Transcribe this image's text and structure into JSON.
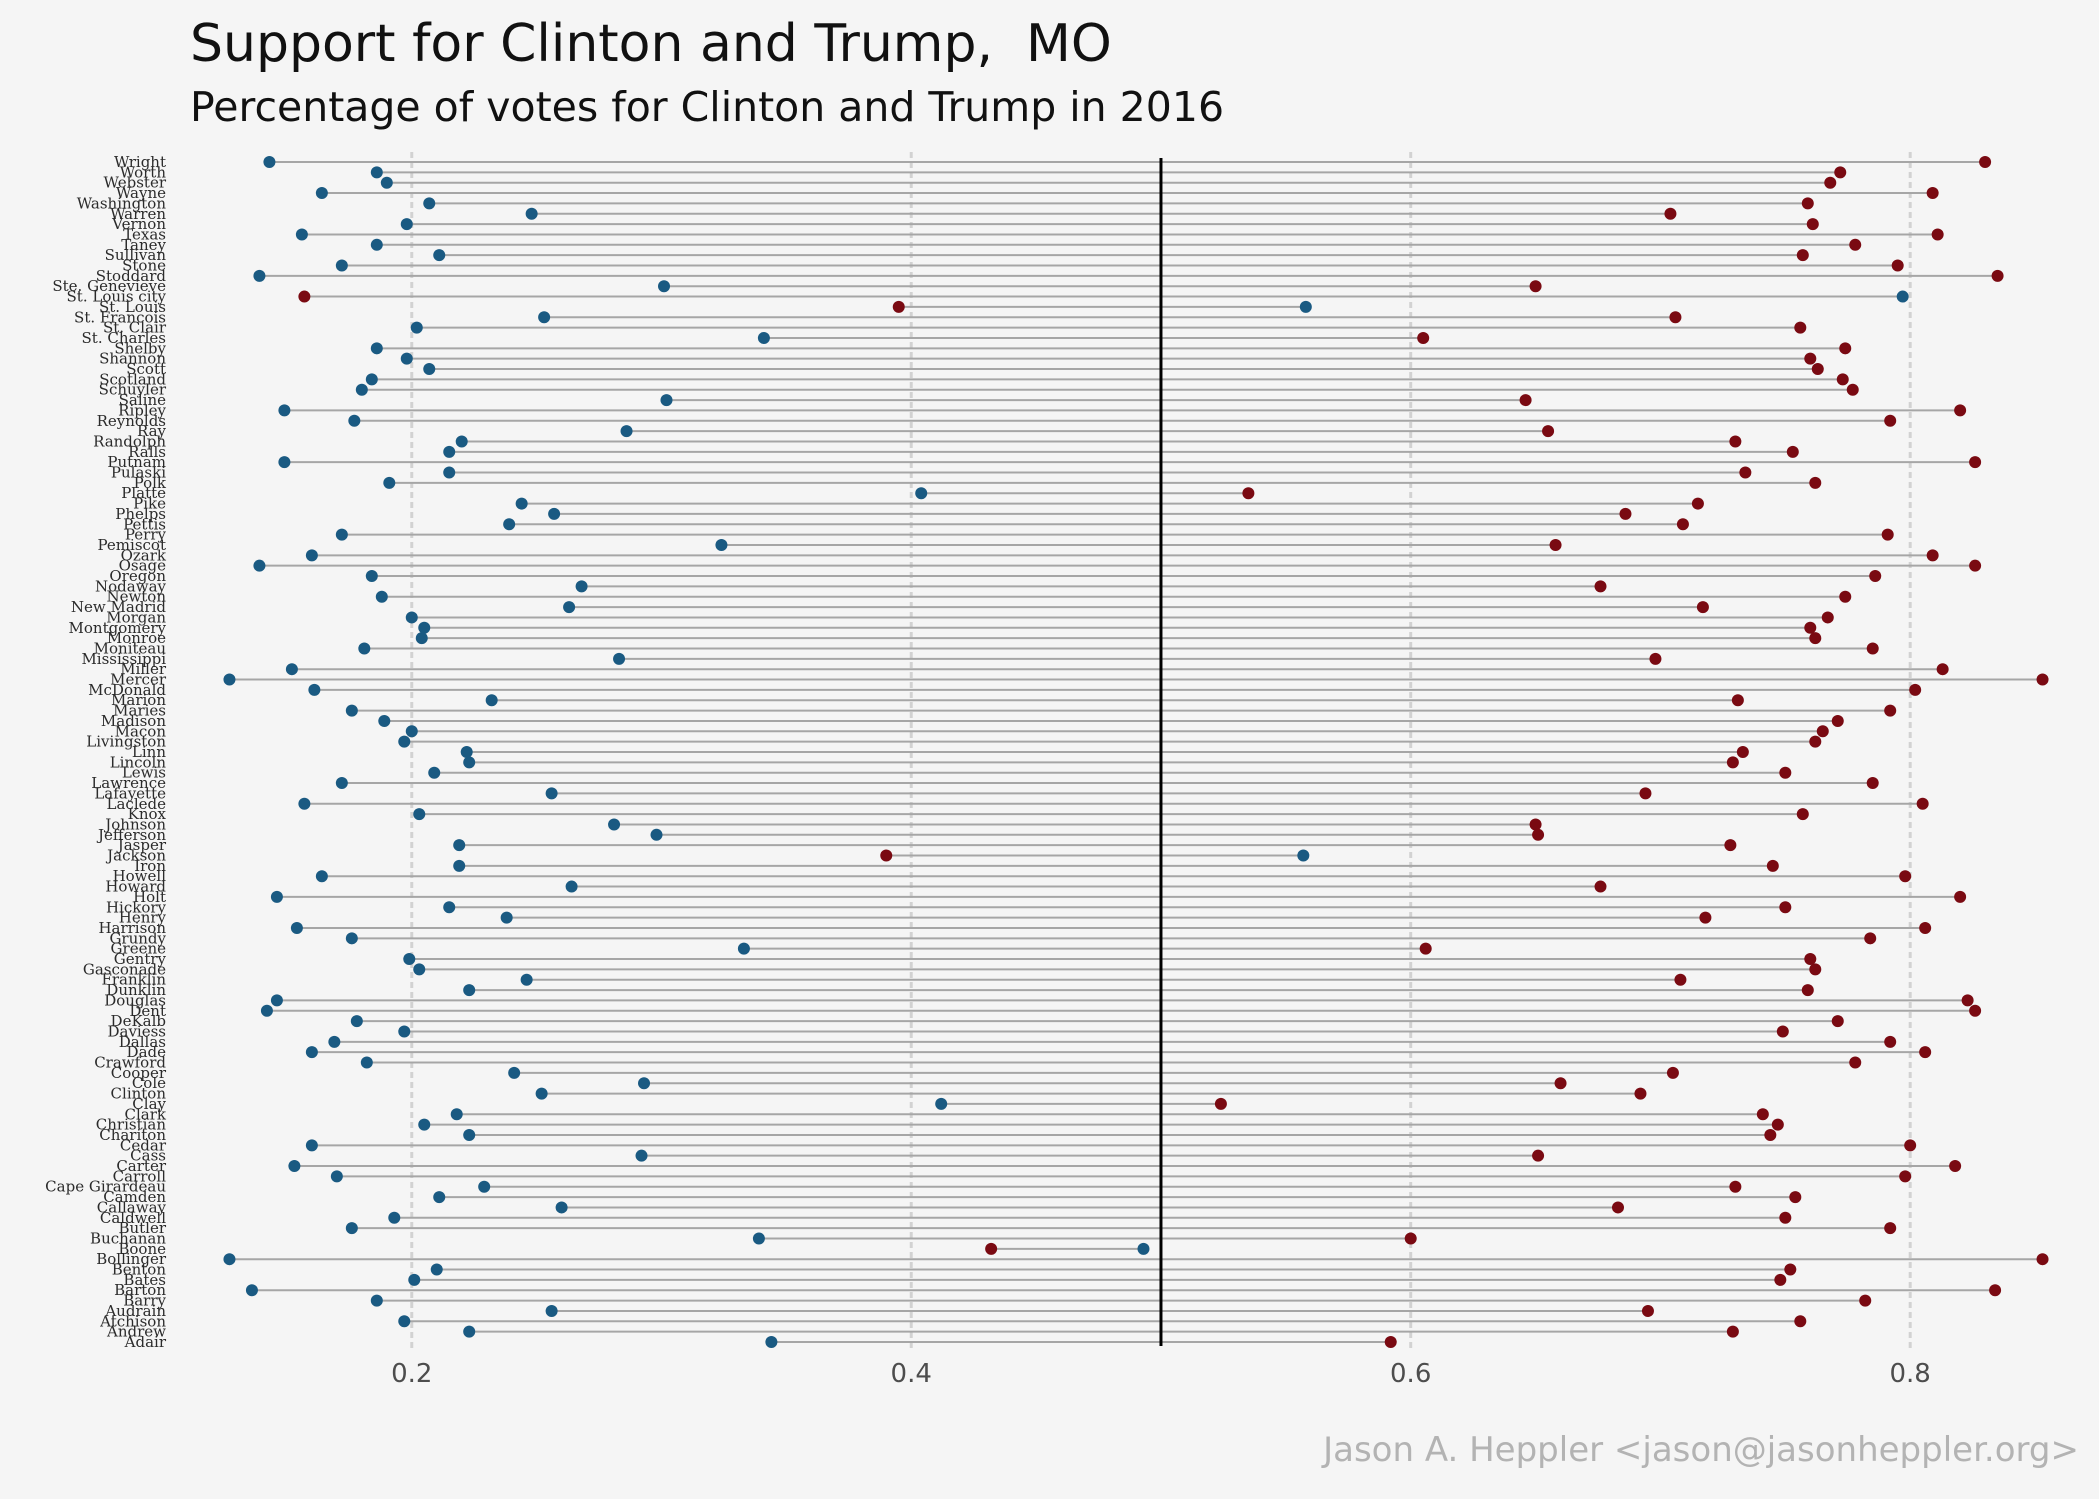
{
  "title": "Support for Clinton and Trump,  MO",
  "subtitle": "Percentage of votes for Clinton and Trump in 2016",
  "caption": "Jason A. Heppler <jason@jasonheppler.org>",
  "colors": {
    "clinton": "#1a5a82",
    "trump": "#7a0a12",
    "segment": "#a6a6a6",
    "midline": "#000000",
    "grid": "#d2d2d2"
  },
  "chart_data": {
    "type": "dumbbell",
    "x_ticks": [
      0.2,
      0.4,
      0.6,
      0.8
    ],
    "xlim": [
      0.112,
      0.868
    ],
    "reference_line": 0.5,
    "series": [
      {
        "name": "Clinton",
        "color": "#1a5a82"
      },
      {
        "name": "Trump",
        "color": "#7a0a12"
      }
    ],
    "counties": [
      {
        "name": "Wright",
        "clinton": 0.143,
        "trump": 0.83
      },
      {
        "name": "Worth",
        "clinton": 0.186,
        "trump": 0.772
      },
      {
        "name": "Webster",
        "clinton": 0.19,
        "trump": 0.768
      },
      {
        "name": "Wayne",
        "clinton": 0.164,
        "trump": 0.809
      },
      {
        "name": "Washington",
        "clinton": 0.207,
        "trump": 0.759
      },
      {
        "name": "Warren",
        "clinton": 0.248,
        "trump": 0.704
      },
      {
        "name": "Vernon",
        "clinton": 0.198,
        "trump": 0.761
      },
      {
        "name": "Texas",
        "clinton": 0.156,
        "trump": 0.811
      },
      {
        "name": "Taney",
        "clinton": 0.186,
        "trump": 0.778
      },
      {
        "name": "Sullivan",
        "clinton": 0.211,
        "trump": 0.757
      },
      {
        "name": "Stone",
        "clinton": 0.172,
        "trump": 0.795
      },
      {
        "name": "Stoddard",
        "clinton": 0.139,
        "trump": 0.835
      },
      {
        "name": "Ste. Genevieve",
        "clinton": 0.301,
        "trump": 0.65
      },
      {
        "name": "St. Louis city",
        "clinton": 0.797,
        "trump": 0.157
      },
      {
        "name": "St. Louis",
        "clinton": 0.558,
        "trump": 0.395
      },
      {
        "name": "St. Francois",
        "clinton": 0.253,
        "trump": 0.706
      },
      {
        "name": "St. Clair",
        "clinton": 0.202,
        "trump": 0.756
      },
      {
        "name": "St. Charles",
        "clinton": 0.341,
        "trump": 0.605
      },
      {
        "name": "Shelby",
        "clinton": 0.186,
        "trump": 0.774
      },
      {
        "name": "Shannon",
        "clinton": 0.198,
        "trump": 0.76
      },
      {
        "name": "Scott",
        "clinton": 0.207,
        "trump": 0.763
      },
      {
        "name": "Scotland",
        "clinton": 0.184,
        "trump": 0.773
      },
      {
        "name": "Schuyler",
        "clinton": 0.18,
        "trump": 0.777
      },
      {
        "name": "Saline",
        "clinton": 0.302,
        "trump": 0.646
      },
      {
        "name": "Ripley",
        "clinton": 0.149,
        "trump": 0.82
      },
      {
        "name": "Reynolds",
        "clinton": 0.177,
        "trump": 0.792
      },
      {
        "name": "Ray",
        "clinton": 0.286,
        "trump": 0.655
      },
      {
        "name": "Randolph",
        "clinton": 0.22,
        "trump": 0.73
      },
      {
        "name": "Ralls",
        "clinton": 0.215,
        "trump": 0.753
      },
      {
        "name": "Putnam",
        "clinton": 0.149,
        "trump": 0.826
      },
      {
        "name": "Pulaski",
        "clinton": 0.215,
        "trump": 0.734
      },
      {
        "name": "Polk",
        "clinton": 0.191,
        "trump": 0.762
      },
      {
        "name": "Platte",
        "clinton": 0.404,
        "trump": 0.535
      },
      {
        "name": "Pike",
        "clinton": 0.244,
        "trump": 0.715
      },
      {
        "name": "Phelps",
        "clinton": 0.257,
        "trump": 0.686
      },
      {
        "name": "Pettis",
        "clinton": 0.239,
        "trump": 0.709
      },
      {
        "name": "Perry",
        "clinton": 0.172,
        "trump": 0.791
      },
      {
        "name": "Pemiscot",
        "clinton": 0.324,
        "trump": 0.658
      },
      {
        "name": "Ozark",
        "clinton": 0.16,
        "trump": 0.809
      },
      {
        "name": "Osage",
        "clinton": 0.139,
        "trump": 0.826
      },
      {
        "name": "Oregon",
        "clinton": 0.184,
        "trump": 0.786
      },
      {
        "name": "Nodaway",
        "clinton": 0.268,
        "trump": 0.676
      },
      {
        "name": "Newton",
        "clinton": 0.188,
        "trump": 0.774
      },
      {
        "name": "New Madrid",
        "clinton": 0.263,
        "trump": 0.717
      },
      {
        "name": "Morgan",
        "clinton": 0.2,
        "trump": 0.767
      },
      {
        "name": "Montgomery",
        "clinton": 0.205,
        "trump": 0.76
      },
      {
        "name": "Monroe",
        "clinton": 0.204,
        "trump": 0.762
      },
      {
        "name": "Moniteau",
        "clinton": 0.181,
        "trump": 0.785
      },
      {
        "name": "Mississippi",
        "clinton": 0.283,
        "trump": 0.698
      },
      {
        "name": "Miller",
        "clinton": 0.152,
        "trump": 0.813
      },
      {
        "name": "Mercer",
        "clinton": 0.127,
        "trump": 0.853
      },
      {
        "name": "McDonald",
        "clinton": 0.161,
        "trump": 0.802
      },
      {
        "name": "Marion",
        "clinton": 0.232,
        "trump": 0.731
      },
      {
        "name": "Maries",
        "clinton": 0.176,
        "trump": 0.792
      },
      {
        "name": "Madison",
        "clinton": 0.189,
        "trump": 0.771
      },
      {
        "name": "Macon",
        "clinton": 0.2,
        "trump": 0.765
      },
      {
        "name": "Livingston",
        "clinton": 0.197,
        "trump": 0.762
      },
      {
        "name": "Linn",
        "clinton": 0.222,
        "trump": 0.733
      },
      {
        "name": "Lincoln",
        "clinton": 0.223,
        "trump": 0.729
      },
      {
        "name": "Lewis",
        "clinton": 0.209,
        "trump": 0.75
      },
      {
        "name": "Lawrence",
        "clinton": 0.172,
        "trump": 0.785
      },
      {
        "name": "Lafayette",
        "clinton": 0.256,
        "trump": 0.694
      },
      {
        "name": "Laclede",
        "clinton": 0.157,
        "trump": 0.805
      },
      {
        "name": "Knox",
        "clinton": 0.203,
        "trump": 0.757
      },
      {
        "name": "Johnson",
        "clinton": 0.281,
        "trump": 0.65
      },
      {
        "name": "Jefferson",
        "clinton": 0.298,
        "trump": 0.651
      },
      {
        "name": "Jasper",
        "clinton": 0.219,
        "trump": 0.728
      },
      {
        "name": "Jackson",
        "clinton": 0.557,
        "trump": 0.39
      },
      {
        "name": "Iron",
        "clinton": 0.219,
        "trump": 0.745
      },
      {
        "name": "Howell",
        "clinton": 0.164,
        "trump": 0.798
      },
      {
        "name": "Howard",
        "clinton": 0.264,
        "trump": 0.676
      },
      {
        "name": "Holt",
        "clinton": 0.146,
        "trump": 0.82
      },
      {
        "name": "Hickory",
        "clinton": 0.215,
        "trump": 0.75
      },
      {
        "name": "Henry",
        "clinton": 0.238,
        "trump": 0.718
      },
      {
        "name": "Harrison",
        "clinton": 0.154,
        "trump": 0.806
      },
      {
        "name": "Grundy",
        "clinton": 0.176,
        "trump": 0.784
      },
      {
        "name": "Greene",
        "clinton": 0.333,
        "trump": 0.606
      },
      {
        "name": "Gentry",
        "clinton": 0.199,
        "trump": 0.76
      },
      {
        "name": "Gasconade",
        "clinton": 0.203,
        "trump": 0.762
      },
      {
        "name": "Franklin",
        "clinton": 0.246,
        "trump": 0.708
      },
      {
        "name": "Dunklin",
        "clinton": 0.223,
        "trump": 0.759
      },
      {
        "name": "Douglas",
        "clinton": 0.146,
        "trump": 0.823
      },
      {
        "name": "Dent",
        "clinton": 0.142,
        "trump": 0.826
      },
      {
        "name": "DeKalb",
        "clinton": 0.178,
        "trump": 0.771
      },
      {
        "name": "Daviess",
        "clinton": 0.197,
        "trump": 0.749
      },
      {
        "name": "Dallas",
        "clinton": 0.169,
        "trump": 0.792
      },
      {
        "name": "Dade",
        "clinton": 0.16,
        "trump": 0.806
      },
      {
        "name": "Crawford",
        "clinton": 0.182,
        "trump": 0.778
      },
      {
        "name": "Cooper",
        "clinton": 0.241,
        "trump": 0.705
      },
      {
        "name": "Cole",
        "clinton": 0.293,
        "trump": 0.66
      },
      {
        "name": "Clinton",
        "clinton": 0.252,
        "trump": 0.692
      },
      {
        "name": "Clay",
        "clinton": 0.412,
        "trump": 0.524
      },
      {
        "name": "Clark",
        "clinton": 0.218,
        "trump": 0.741
      },
      {
        "name": "Christian",
        "clinton": 0.205,
        "trump": 0.747
      },
      {
        "name": "Chariton",
        "clinton": 0.223,
        "trump": 0.744
      },
      {
        "name": "Cedar",
        "clinton": 0.16,
        "trump": 0.8
      },
      {
        "name": "Cass",
        "clinton": 0.292,
        "trump": 0.651
      },
      {
        "name": "Carter",
        "clinton": 0.153,
        "trump": 0.818
      },
      {
        "name": "Carroll",
        "clinton": 0.17,
        "trump": 0.798
      },
      {
        "name": "Cape Girardeau",
        "clinton": 0.229,
        "trump": 0.73
      },
      {
        "name": "Camden",
        "clinton": 0.211,
        "trump": 0.754
      },
      {
        "name": "Callaway",
        "clinton": 0.26,
        "trump": 0.683
      },
      {
        "name": "Caldwell",
        "clinton": 0.193,
        "trump": 0.75
      },
      {
        "name": "Butler",
        "clinton": 0.176,
        "trump": 0.792
      },
      {
        "name": "Buchanan",
        "clinton": 0.339,
        "trump": 0.6
      },
      {
        "name": "Boone",
        "clinton": 0.493,
        "trump": 0.432
      },
      {
        "name": "Bollinger",
        "clinton": 0.127,
        "trump": 0.853
      },
      {
        "name": "Benton",
        "clinton": 0.21,
        "trump": 0.752
      },
      {
        "name": "Bates",
        "clinton": 0.201,
        "trump": 0.748
      },
      {
        "name": "Barton",
        "clinton": 0.136,
        "trump": 0.834
      },
      {
        "name": "Barry",
        "clinton": 0.186,
        "trump": 0.782
      },
      {
        "name": "Audrain",
        "clinton": 0.256,
        "trump": 0.695
      },
      {
        "name": "Atchison",
        "clinton": 0.197,
        "trump": 0.756
      },
      {
        "name": "Andrew",
        "clinton": 0.223,
        "trump": 0.729
      },
      {
        "name": "Adair",
        "clinton": 0.344,
        "trump": 0.592
      }
    ]
  }
}
